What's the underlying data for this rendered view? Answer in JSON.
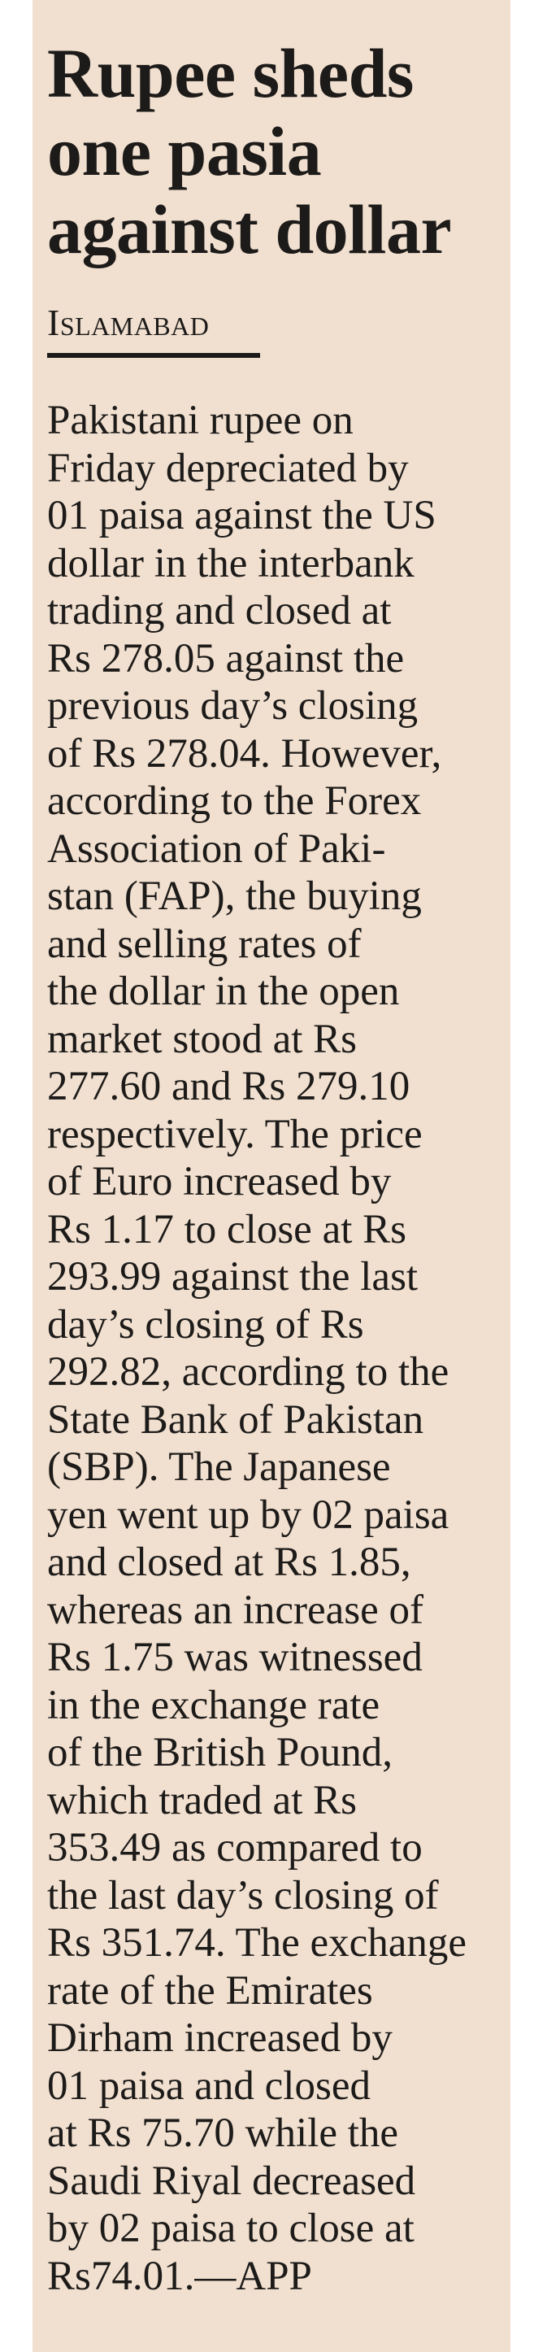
{
  "article": {
    "headline_lines": [
      "Rupee sheds",
      "one pasia",
      "against dollar"
    ],
    "dateline": "Islamabad",
    "body_lines": [
      "Pakistani rupee on",
      "Friday depreciated by",
      "01 paisa against the US",
      "dollar in the interbank",
      "trading and closed at",
      "Rs 278.05 against the",
      "previous day’s closing",
      "of Rs 278.04. However,",
      "according to the Forex",
      "Association of Paki-",
      "stan (FAP), the buying",
      "and selling rates of",
      "the dollar in the open",
      "market stood at Rs",
      "277.60 and Rs 279.10",
      "respectively. The price",
      "of Euro increased by",
      "Rs 1.17  to close at Rs",
      "293.99 against the last",
      "day’s closing of Rs",
      "292.82, according to the",
      "State Bank of Pakistan",
      "(SBP). The Japanese",
      "yen went up by 02 paisa",
      "and closed at Rs 1.85,",
      "whereas an increase of",
      "Rs 1.75 was witnessed",
      "in the exchange rate",
      "of the British Pound,",
      "which traded at Rs",
      "353.49 as compared to",
      "the last day’s closing of",
      "Rs 351.74. The exchange",
      "rate of the Emirates",
      "Dirham increased by",
      "01 paisa and closed",
      "at Rs 75.70 while the",
      "Saudi Riyal decreased",
      "by 02  paisa to close at",
      "Rs74.01.—APP"
    ]
  },
  "colors": {
    "background_panel": "#f1e0cf",
    "text": "#1d1b1a"
  }
}
